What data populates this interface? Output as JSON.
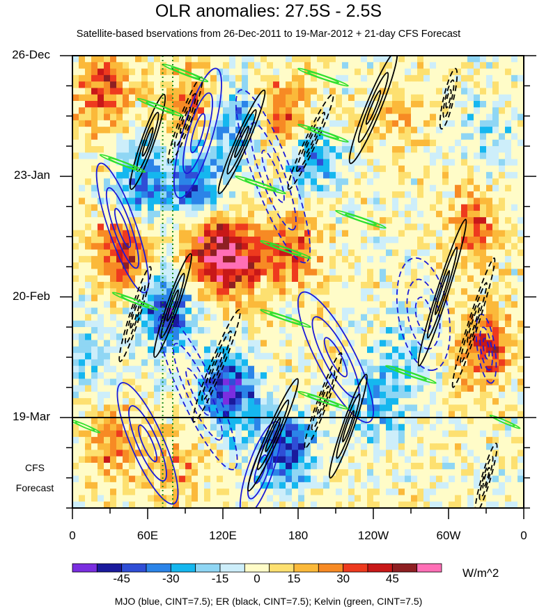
{
  "chart_data": {
    "type": "heatmap",
    "title": "OLR anomalies: 27.5S - 2.5S",
    "subtitle": "Satellite-based bservations from 26-Dec-2011 to 19-Mar-2012 + 21-day CFS Forecast",
    "x_ticks": [
      "0",
      "60E",
      "120E",
      "180",
      "120W",
      "60W",
      "0"
    ],
    "x_tick_lon": [
      0,
      60,
      120,
      180,
      240,
      300,
      360
    ],
    "y_ticks": [
      "26-Dec",
      "23-Jan",
      "20-Feb",
      "19-Mar"
    ],
    "y_tick_day": [
      0,
      28,
      56,
      84
    ],
    "xlim": [
      0,
      360
    ],
    "ylim_days": [
      0,
      105
    ],
    "observation_end_day": 84,
    "forecast_label": [
      "CFS",
      "Forecast"
    ],
    "reference_longitudes": [
      72,
      80
    ],
    "colorbar": {
      "labels": [
        "-45",
        "-30",
        "-15",
        "0",
        "15",
        "30",
        "45"
      ],
      "levels": [
        -52.5,
        -45,
        -37.5,
        -30,
        -22.5,
        -15,
        -7.5,
        7.5,
        15,
        22.5,
        30,
        37.5,
        45,
        52.5
      ],
      "colors": [
        "#7a2ee0",
        "#1a1a9c",
        "#2f4ed6",
        "#2b84e8",
        "#15b7ef",
        "#8fd6f4",
        "#cdeefa",
        "#fffcc8",
        "#fde070",
        "#fbb93a",
        "#f78a24",
        "#ee3a1e",
        "#c81818",
        "#8e1f22",
        "#ff6fb6"
      ],
      "unit": "W/m^2"
    },
    "footnote": "MJO (blue, CINT=7.5); ER (black, CINT=7.5); Kelvin (green, CINT=7.5)",
    "features": [
      {
        "type": "MJO",
        "color": "#1a1ad8",
        "lon": 40,
        "day": 40,
        "width_deg": 22,
        "length_days": 30,
        "slope_deg_per_day": 1.2,
        "sign": 1
      },
      {
        "type": "MJO",
        "color": "#1a1ad8",
        "lon": 100,
        "day": 78,
        "width_deg": 28,
        "length_days": 36,
        "slope_deg_per_day": 1.6,
        "sign": -1
      },
      {
        "type": "MJO",
        "color": "#1a1ad8",
        "lon": 160,
        "day": 28,
        "width_deg": 30,
        "length_days": 40,
        "slope_deg_per_day": 1.3,
        "sign": -1
      },
      {
        "type": "MJO",
        "color": "#1a1ad8",
        "lon": 100,
        "day": 18,
        "width_deg": 24,
        "length_days": 30,
        "slope_deg_per_day": -1.0,
        "sign": 1
      },
      {
        "type": "MJO",
        "color": "#1a1ad8",
        "lon": 60,
        "day": 90,
        "width_deg": 26,
        "length_days": 28,
        "slope_deg_per_day": 1.5,
        "sign": 1
      },
      {
        "type": "MJO",
        "color": "#1a1ad8",
        "lon": 150,
        "day": 96,
        "width_deg": 20,
        "length_days": 22,
        "slope_deg_per_day": -1.2,
        "sign": 1
      },
      {
        "type": "MJO",
        "color": "#1a1ad8",
        "lon": 280,
        "day": 60,
        "width_deg": 40,
        "length_days": 26,
        "slope_deg_per_day": 0.6,
        "sign": -1
      },
      {
        "type": "MJO",
        "color": "#1a1ad8",
        "lon": 210,
        "day": 70,
        "width_deg": 30,
        "length_days": 30,
        "slope_deg_per_day": 1.8,
        "sign": 1
      },
      {
        "type": "MJO",
        "color": "#1a1ad8",
        "lon": 330,
        "day": 68,
        "width_deg": 14,
        "length_days": 16,
        "slope_deg_per_day": 0.5,
        "sign": -1
      },
      {
        "type": "ER",
        "color": "#000000",
        "lon": 60,
        "day": 20,
        "width_deg": 10,
        "length_days": 22,
        "slope_deg_per_day": -1.2,
        "sign": 1
      },
      {
        "type": "ER",
        "color": "#000000",
        "lon": 90,
        "day": 15,
        "width_deg": 9,
        "length_days": 20,
        "slope_deg_per_day": -1.3,
        "sign": -1
      },
      {
        "type": "ER",
        "color": "#000000",
        "lon": 135,
        "day": 20,
        "width_deg": 10,
        "length_days": 24,
        "slope_deg_per_day": -1.5,
        "sign": 1
      },
      {
        "type": "ER",
        "color": "#000000",
        "lon": 190,
        "day": 20,
        "width_deg": 9,
        "length_days": 22,
        "slope_deg_per_day": -1.6,
        "sign": -1
      },
      {
        "type": "ER",
        "color": "#000000",
        "lon": 240,
        "day": 12,
        "width_deg": 12,
        "length_days": 26,
        "slope_deg_per_day": -1.4,
        "sign": 1
      },
      {
        "type": "ER",
        "color": "#000000",
        "lon": 50,
        "day": 60,
        "width_deg": 8,
        "length_days": 22,
        "slope_deg_per_day": -1.1,
        "sign": -1
      },
      {
        "type": "ER",
        "color": "#000000",
        "lon": 80,
        "day": 58,
        "width_deg": 9,
        "length_days": 24,
        "slope_deg_per_day": -1.2,
        "sign": 1
      },
      {
        "type": "ER",
        "color": "#000000",
        "lon": 115,
        "day": 72,
        "width_deg": 10,
        "length_days": 26,
        "slope_deg_per_day": -1.4,
        "sign": -1
      },
      {
        "type": "ER",
        "color": "#000000",
        "lon": 160,
        "day": 88,
        "width_deg": 10,
        "length_days": 26,
        "slope_deg_per_day": -1.5,
        "sign": 1
      },
      {
        "type": "ER",
        "color": "#000000",
        "lon": 200,
        "day": 80,
        "width_deg": 8,
        "length_days": 22,
        "slope_deg_per_day": -1.3,
        "sign": -1
      },
      {
        "type": "ER",
        "color": "#000000",
        "lon": 220,
        "day": 86,
        "width_deg": 9,
        "length_days": 24,
        "slope_deg_per_day": -1.2,
        "sign": 1
      },
      {
        "type": "ER",
        "color": "#000000",
        "lon": 295,
        "day": 55,
        "width_deg": 9,
        "length_days": 34,
        "slope_deg_per_day": -1.1,
        "sign": 1
      },
      {
        "type": "ER",
        "color": "#000000",
        "lon": 320,
        "day": 62,
        "width_deg": 8,
        "length_days": 30,
        "slope_deg_per_day": -1.1,
        "sign": -1
      },
      {
        "type": "ER",
        "color": "#000000",
        "lon": 330,
        "day": 98,
        "width_deg": 7,
        "length_days": 16,
        "slope_deg_per_day": -1.0,
        "sign": -1
      },
      {
        "type": "ER",
        "color": "#000000",
        "lon": 300,
        "day": 10,
        "width_deg": 8,
        "length_days": 14,
        "slope_deg_per_day": -0.8,
        "sign": -1
      },
      {
        "type": "Kelvin",
        "color": "#2ee02e",
        "lon": 90,
        "day": 4,
        "width_deg": 3,
        "length_days": 4,
        "slope_deg_per_day": 9,
        "sign": 1
      },
      {
        "type": "Kelvin",
        "color": "#2ee02e",
        "lon": 200,
        "day": 5,
        "width_deg": 3,
        "length_days": 4,
        "slope_deg_per_day": 10,
        "sign": 1
      },
      {
        "type": "Kelvin",
        "color": "#2ee02e",
        "lon": 70,
        "day": 12,
        "width_deg": 3,
        "length_days": 4,
        "slope_deg_per_day": 9,
        "sign": 1
      },
      {
        "type": "Kelvin",
        "color": "#2ee02e",
        "lon": 200,
        "day": 18,
        "width_deg": 3,
        "length_days": 4,
        "slope_deg_per_day": 10,
        "sign": 1
      },
      {
        "type": "Kelvin",
        "color": "#2ee02e",
        "lon": 40,
        "day": 25,
        "width_deg": 3,
        "length_days": 4,
        "slope_deg_per_day": 9,
        "sign": 1
      },
      {
        "type": "Kelvin",
        "color": "#2ee02e",
        "lon": 150,
        "day": 30,
        "width_deg": 3,
        "length_days": 4,
        "slope_deg_per_day": 10,
        "sign": 1
      },
      {
        "type": "Kelvin",
        "color": "#2ee02e",
        "lon": 230,
        "day": 38,
        "width_deg": 3,
        "length_days": 4,
        "slope_deg_per_day": 10,
        "sign": 1
      },
      {
        "type": "Kelvin",
        "color": "#2ee02e",
        "lon": 170,
        "day": 45,
        "width_deg": 3,
        "length_days": 4,
        "slope_deg_per_day": 10,
        "sign": 1
      },
      {
        "type": "Kelvin",
        "color": "#2ee02e",
        "lon": 50,
        "day": 57,
        "width_deg": 3,
        "length_days": 4,
        "slope_deg_per_day": 9,
        "sign": 1
      },
      {
        "type": "Kelvin",
        "color": "#2ee02e",
        "lon": 170,
        "day": 61,
        "width_deg": 3,
        "length_days": 4,
        "slope_deg_per_day": 10,
        "sign": 1
      },
      {
        "type": "Kelvin",
        "color": "#2ee02e",
        "lon": 270,
        "day": 74,
        "width_deg": 3,
        "length_days": 4,
        "slope_deg_per_day": 10,
        "sign": 1
      },
      {
        "type": "Kelvin",
        "color": "#2ee02e",
        "lon": 200,
        "day": 80,
        "width_deg": 3,
        "length_days": 4,
        "slope_deg_per_day": 10,
        "sign": 1
      },
      {
        "type": "Kelvin",
        "color": "#2ee02e",
        "lon": 10,
        "day": 86,
        "width_deg": 2,
        "length_days": 3,
        "slope_deg_per_day": 8,
        "sign": 1
      },
      {
        "type": "Kelvin",
        "color": "#2ee02e",
        "lon": 345,
        "day": 85,
        "width_deg": 2,
        "length_days": 3,
        "slope_deg_per_day": 8,
        "sign": 1
      }
    ],
    "anomaly_centers": [
      {
        "lon": 25,
        "day": 8,
        "value": 35
      },
      {
        "lon": 40,
        "day": 45,
        "value": 40
      },
      {
        "lon": 110,
        "day": 45,
        "value": 45
      },
      {
        "lon": 135,
        "day": 48,
        "value": 35
      },
      {
        "lon": 175,
        "day": 45,
        "value": 30
      },
      {
        "lon": 170,
        "day": 14,
        "value": 30
      },
      {
        "lon": 95,
        "day": 12,
        "value": 25
      },
      {
        "lon": 330,
        "day": 68,
        "value": 35
      },
      {
        "lon": 320,
        "day": 40,
        "value": 28
      },
      {
        "lon": 260,
        "day": 15,
        "value": 15
      },
      {
        "lon": 30,
        "day": 90,
        "value": 25
      },
      {
        "lon": 85,
        "day": 95,
        "value": 20
      },
      {
        "lon": 55,
        "day": 30,
        "value": -35
      },
      {
        "lon": 75,
        "day": 60,
        "value": -45
      },
      {
        "lon": 100,
        "day": 30,
        "value": -40
      },
      {
        "lon": 125,
        "day": 78,
        "value": -50
      },
      {
        "lon": 190,
        "day": 24,
        "value": -30
      },
      {
        "lon": 170,
        "day": 92,
        "value": -45
      },
      {
        "lon": 245,
        "day": 80,
        "value": -25
      },
      {
        "lon": 270,
        "day": 68,
        "value": -15
      },
      {
        "lon": 330,
        "day": 18,
        "value": -15
      },
      {
        "lon": 15,
        "day": 70,
        "value": -18
      },
      {
        "lon": 130,
        "day": 15,
        "value": -30
      }
    ]
  }
}
